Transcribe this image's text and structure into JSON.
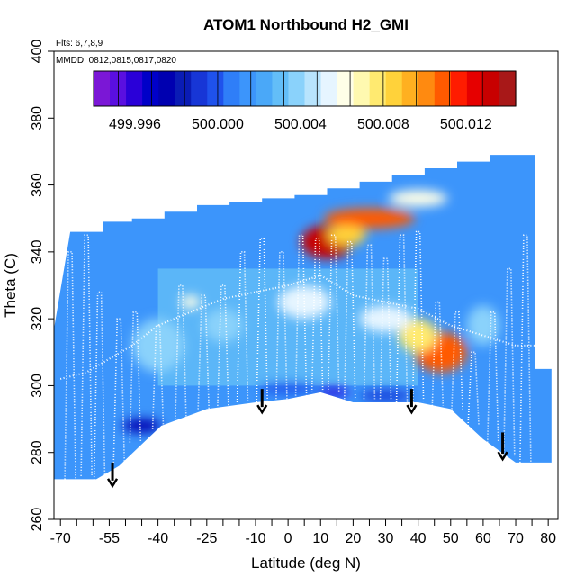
{
  "chart_data": {
    "type": "heatmap",
    "title": "ATOM1 Northbound H2_GMI",
    "annotations": [
      "Flts: 6,7,8,9",
      "MMDD: 0812,0815,0817,0820"
    ],
    "xlabel": "Latitude (deg N)",
    "ylabel": "Theta (C)",
    "xlim": [
      -72,
      83
    ],
    "ylim": [
      260,
      400
    ],
    "x_ticks_minor": [
      -70,
      -65,
      -60,
      -55,
      -50,
      -45,
      -40,
      -35,
      -30,
      -25,
      -20,
      -15,
      -10,
      -5,
      0,
      5,
      10,
      15,
      20,
      25,
      30,
      35,
      40,
      45,
      50,
      55,
      60,
      65,
      70,
      75,
      80
    ],
    "x_tick_labels": [
      {
        "value": -70,
        "label": "-70"
      },
      {
        "value": -55,
        "label": "-55"
      },
      {
        "value": -40,
        "label": "-40"
      },
      {
        "value": -25,
        "label": "-25"
      },
      {
        "value": -10,
        "label": "-10"
      },
      {
        "value": 0,
        "label": "0"
      },
      {
        "value": 10,
        "label": "10"
      },
      {
        "value": 20,
        "label": "20"
      },
      {
        "value": 30,
        "label": "30"
      },
      {
        "value": 40,
        "label": "40"
      },
      {
        "value": 50,
        "label": "50"
      },
      {
        "value": 60,
        "label": "60"
      },
      {
        "value": 70,
        "label": "70"
      },
      {
        "value": 80,
        "label": "80"
      }
    ],
    "y_ticks": [
      {
        "value": 260,
        "label": "260"
      },
      {
        "value": 280,
        "label": "280"
      },
      {
        "value": 300,
        "label": "300"
      },
      {
        "value": 320,
        "label": "320"
      },
      {
        "value": 340,
        "label": "340"
      },
      {
        "value": 360,
        "label": "360"
      },
      {
        "value": 380,
        "label": "380"
      },
      {
        "value": 400,
        "label": "400"
      }
    ],
    "colorbar": {
      "min": 499.994,
      "max": 500.0144,
      "tick_labels": [
        {
          "value": 499.996,
          "label": "499.996"
        },
        {
          "value": 500.0,
          "label": "500.000"
        },
        {
          "value": 500.004,
          "label": "500.004"
        },
        {
          "value": 500.008,
          "label": "500.008"
        },
        {
          "value": 500.012,
          "label": "500.012"
        }
      ],
      "colors": [
        "#7b17d6",
        "#5a0fe0",
        "#2a00d8",
        "#0000c8",
        "#0000b0",
        "#0a1cb5",
        "#1736d6",
        "#1f52ec",
        "#2f7ef8",
        "#3c95fb",
        "#4aa8f8",
        "#63bef8",
        "#8ad2fb",
        "#b8e4fd",
        "#e6f5ff",
        "#ffffe8",
        "#fff9b0",
        "#ffea70",
        "#ffd23a",
        "#ffb020",
        "#ff8a10",
        "#ff5a00",
        "#ff1c00",
        "#e60000",
        "#c80000",
        "#a81818"
      ]
    },
    "domain_top": [
      [
        -72,
        317
      ],
      [
        -67,
        346
      ],
      [
        -57,
        346
      ],
      [
        -57,
        349
      ],
      [
        -48,
        349
      ],
      [
        -48,
        350
      ],
      [
        -38,
        350
      ],
      [
        -38,
        352
      ],
      [
        -28,
        352
      ],
      [
        -28,
        354
      ],
      [
        -18,
        354
      ],
      [
        -18,
        355
      ],
      [
        -8,
        355
      ],
      [
        -8,
        356
      ],
      [
        2,
        356
      ],
      [
        2,
        357
      ],
      [
        12,
        357
      ],
      [
        12,
        359
      ],
      [
        22,
        359
      ],
      [
        22,
        361
      ],
      [
        32,
        361
      ],
      [
        32,
        363
      ],
      [
        42,
        363
      ],
      [
        42,
        365
      ],
      [
        52,
        365
      ],
      [
        52,
        367
      ],
      [
        62,
        367
      ],
      [
        62,
        369
      ],
      [
        72,
        369
      ],
      [
        72,
        369
      ],
      [
        76,
        369
      ],
      [
        76,
        305
      ],
      [
        81,
        305
      ],
      [
        81,
        277
      ]
    ],
    "domain_bottom": [
      [
        -72,
        272
      ],
      [
        -59,
        272
      ],
      [
        -52,
        276
      ],
      [
        -39,
        288
      ],
      [
        -25,
        293
      ],
      [
        -10,
        295
      ],
      [
        0,
        296
      ],
      [
        10,
        298
      ],
      [
        20,
        295
      ],
      [
        30,
        295
      ],
      [
        40,
        295
      ],
      [
        50,
        293
      ],
      [
        60,
        284
      ],
      [
        70,
        277
      ],
      [
        81,
        277
      ]
    ],
    "blobs": [
      {
        "lon": 12,
        "th": 343,
        "rx": 8,
        "ry": 5,
        "v": 500.0135
      },
      {
        "lon": 25,
        "th": 350,
        "rx": 14,
        "ry": 3,
        "v": 500.0105
      },
      {
        "lon": 40,
        "th": 356,
        "rx": 9,
        "ry": 2.5,
        "v": 500.006
      },
      {
        "lon": 18,
        "th": 345,
        "rx": 6,
        "ry": 3,
        "v": 500.0085
      },
      {
        "lon": 5,
        "th": 325,
        "rx": 8,
        "ry": 5,
        "v": 500.0055
      },
      {
        "lon": 47,
        "th": 310,
        "rx": 8,
        "ry": 6,
        "v": 500.0105
      },
      {
        "lon": 40,
        "th": 315,
        "rx": 6,
        "ry": 5,
        "v": 500.0075
      },
      {
        "lon": 30,
        "th": 320,
        "rx": 8,
        "ry": 4,
        "v": 500.005
      },
      {
        "lon": -30,
        "th": 325,
        "rx": 3,
        "ry": 2,
        "v": 500.0065
      },
      {
        "lon": -40,
        "th": 312,
        "rx": 8,
        "ry": 8,
        "v": 500.0035
      },
      {
        "lon": -20,
        "th": 318,
        "rx": 6,
        "ry": 5,
        "v": 500.004
      },
      {
        "lon": 60,
        "th": 318,
        "rx": 5,
        "ry": 6,
        "v": 500.0038
      },
      {
        "lon": -45,
        "th": 288,
        "rx": 6,
        "ry": 2,
        "v": 499.9975
      },
      {
        "lon": 14,
        "th": 298,
        "rx": 5,
        "ry": 1.2,
        "v": 499.996
      },
      {
        "lon": 0,
        "th": 299,
        "rx": 9,
        "ry": 1.5,
        "v": 499.9995
      },
      {
        "lon": 30,
        "th": 297,
        "rx": 8,
        "ry": 1.5,
        "v": 499.999
      }
    ],
    "profiles": [
      {
        "lon": -67,
        "top": 340,
        "bot": 272
      },
      {
        "lon": -62,
        "top": 345,
        "bot": 273
      },
      {
        "lon": -58,
        "top": 328,
        "bot": 271
      },
      {
        "lon": -52,
        "top": 320,
        "bot": 277
      },
      {
        "lon": -47,
        "top": 322,
        "bot": 283
      },
      {
        "lon": -40,
        "top": 318,
        "bot": 287
      },
      {
        "lon": -33,
        "top": 330,
        "bot": 290
      },
      {
        "lon": -26,
        "top": 327,
        "bot": 293
      },
      {
        "lon": -20,
        "top": 330,
        "bot": 294
      },
      {
        "lon": -14,
        "top": 340,
        "bot": 295
      },
      {
        "lon": -8,
        "top": 344,
        "bot": 295
      },
      {
        "lon": -2,
        "top": 340,
        "bot": 296
      },
      {
        "lon": 4,
        "top": 345,
        "bot": 297
      },
      {
        "lon": 9,
        "top": 344,
        "bot": 298
      },
      {
        "lon": 14,
        "top": 345,
        "bot": 298
      },
      {
        "lon": 19,
        "top": 343,
        "bot": 296
      },
      {
        "lon": 25,
        "top": 342,
        "bot": 296
      },
      {
        "lon": 30,
        "top": 338,
        "bot": 296
      },
      {
        "lon": 35,
        "top": 345,
        "bot": 295
      },
      {
        "lon": 40,
        "top": 346,
        "bot": 295
      },
      {
        "lon": 46,
        "top": 325,
        "bot": 294
      },
      {
        "lon": 52,
        "top": 322,
        "bot": 293
      },
      {
        "lon": 57,
        "top": 310,
        "bot": 288
      },
      {
        "lon": 63,
        "top": 322,
        "bot": 283
      },
      {
        "lon": 68,
        "top": 335,
        "bot": 279
      },
      {
        "lon": 73,
        "top": 345,
        "bot": 277
      }
    ],
    "trend_line": [
      [
        -70,
        302
      ],
      [
        -62,
        304
      ],
      [
        -55,
        308
      ],
      [
        -48,
        312
      ],
      [
        -40,
        318
      ],
      [
        -30,
        322
      ],
      [
        -20,
        326
      ],
      [
        -10,
        328
      ],
      [
        0,
        330
      ],
      [
        10,
        333
      ],
      [
        20,
        327
      ],
      [
        30,
        325
      ],
      [
        40,
        323
      ],
      [
        50,
        318
      ],
      [
        60,
        315
      ],
      [
        70,
        312
      ],
      [
        76,
        312
      ]
    ],
    "arrows": [
      {
        "lon": -54,
        "th_start": 277,
        "th_end": 270
      },
      {
        "lon": -8,
        "th_start": 299,
        "th_end": 292
      },
      {
        "lon": 38,
        "th_start": 299,
        "th_end": 292
      },
      {
        "lon": 66,
        "th_start": 286,
        "th_end": 278
      }
    ]
  }
}
